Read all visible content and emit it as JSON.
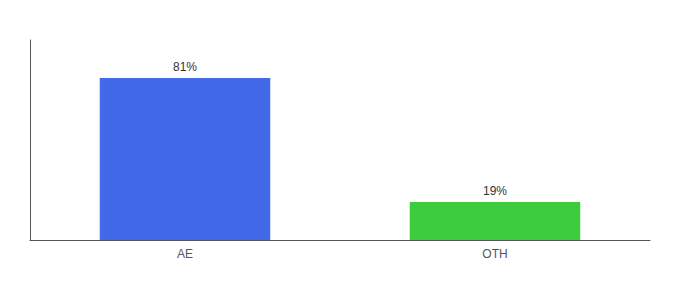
{
  "chart_data": {
    "type": "bar",
    "categories": [
      "AE",
      "OTH"
    ],
    "values": [
      81,
      19
    ],
    "value_labels": [
      "81%",
      "19%"
    ],
    "colors": [
      "#4169e8",
      "#3dcc3d"
    ],
    "ylim": [
      0,
      100
    ],
    "data_labels": true,
    "tick_labels": "x",
    "grid": false
  }
}
